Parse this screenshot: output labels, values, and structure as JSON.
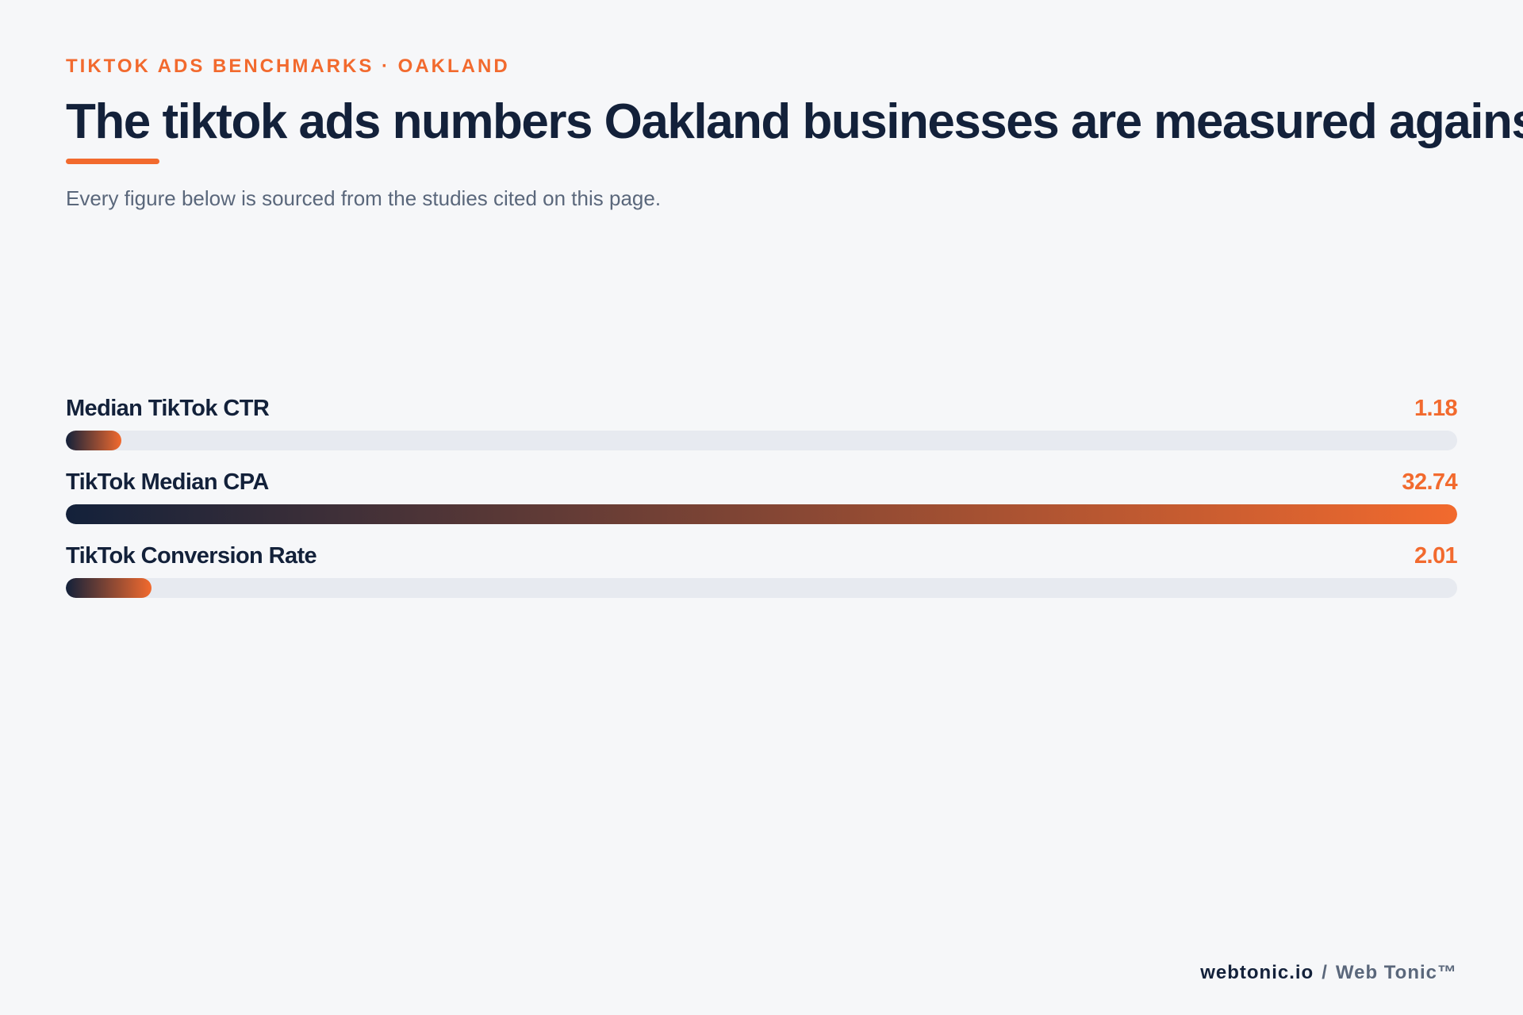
{
  "header": {
    "eyebrow": "TIKTOK ADS BENCHMARKS · OAKLAND",
    "title": "The tiktok ads numbers Oakland businesses are measured against",
    "subtitle": "Every figure below is sourced from the studies cited on this page."
  },
  "chart_data": {
    "type": "bar",
    "orientation": "horizontal",
    "categories": [
      "Median TikTok CTR",
      "TikTok Median CPA",
      "TikTok Conversion Rate"
    ],
    "values": [
      1.18,
      32.74,
      2.01
    ],
    "value_labels": [
      "1.18",
      "32.74",
      "2.01"
    ],
    "xlim": [
      0,
      32.74
    ],
    "grid": false,
    "legend": "none",
    "colors": {
      "gradient_start": "#13213a",
      "gradient_end": "#f26a2e",
      "track": "#e7eaf0",
      "value_text": "#f26a2e"
    }
  },
  "footer": {
    "domain": "webtonic.io",
    "separator": "/",
    "brand": "Web Tonic™"
  }
}
